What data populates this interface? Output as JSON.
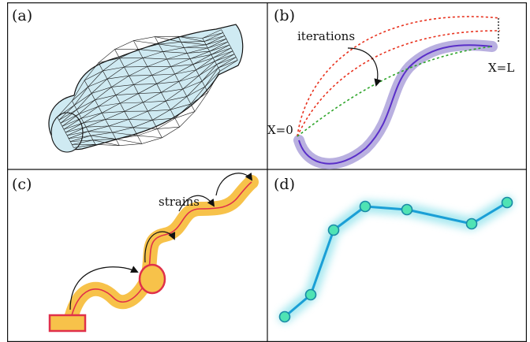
{
  "panels": [
    {
      "label": "(a)"
    },
    {
      "label": "(b)",
      "annotations": {
        "iterations": "iterations",
        "x_start": "X=0",
        "x_end": "X=L"
      }
    },
    {
      "label": "(c)",
      "annotations": {
        "strains": "strains"
      }
    },
    {
      "label": "(d)"
    }
  ],
  "colors": {
    "mesh_fill": "#cfeaf2",
    "rod_band": "#b9b0e0",
    "rod_line": "#5a2fc8",
    "iteration_red": "#e8321e",
    "iteration_green": "#2ea52a",
    "strain_band": "#f7c24a",
    "strain_line": "#e0304a",
    "node_fill": "#4fe3b4",
    "chain_line": "#1a9fd6",
    "chain_glow": "#9fe6ee"
  },
  "icons": [
    "curved-arrow-icon",
    "rectangle-base-icon",
    "circle-joint-icon"
  ],
  "node_count": 7
}
